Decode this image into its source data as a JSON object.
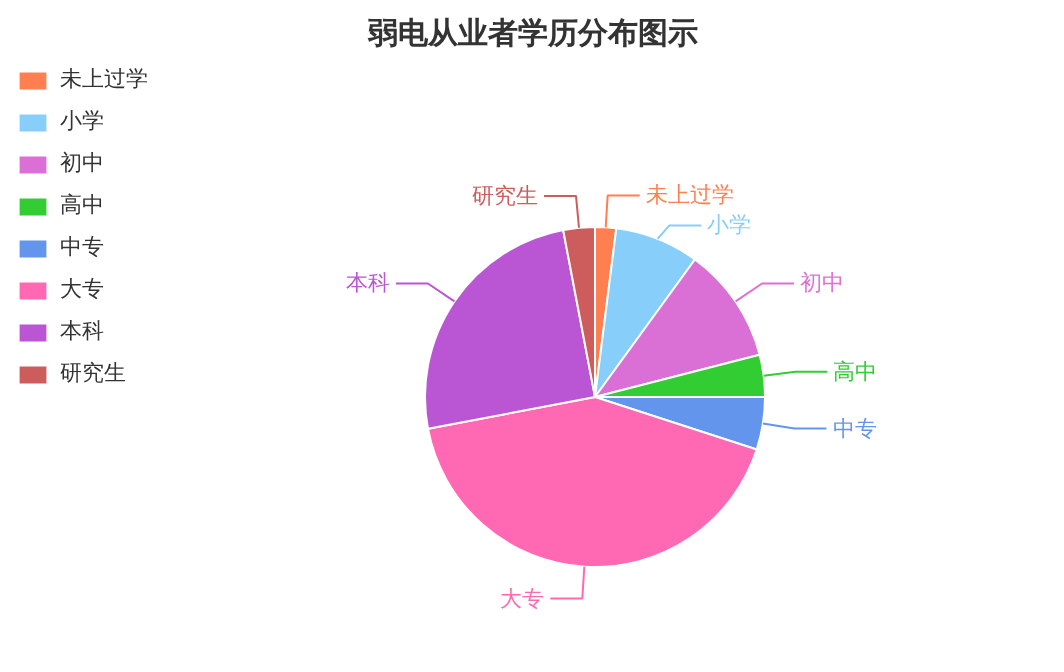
{
  "chart_data": {
    "type": "pie",
    "title": "弱电从业者学历分布图示",
    "categories": [
      "未上过学",
      "小学",
      "初中",
      "高中",
      "中专",
      "大专",
      "本科",
      "研究生"
    ],
    "values": [
      2,
      8,
      11,
      4,
      5,
      42,
      25,
      3
    ],
    "colors": [
      "#ff7f50",
      "#87cefa",
      "#da70d6",
      "#32cd32",
      "#6495ed",
      "#ff69b4",
      "#ba55d3",
      "#cd5c5c"
    ],
    "legend": "left"
  }
}
